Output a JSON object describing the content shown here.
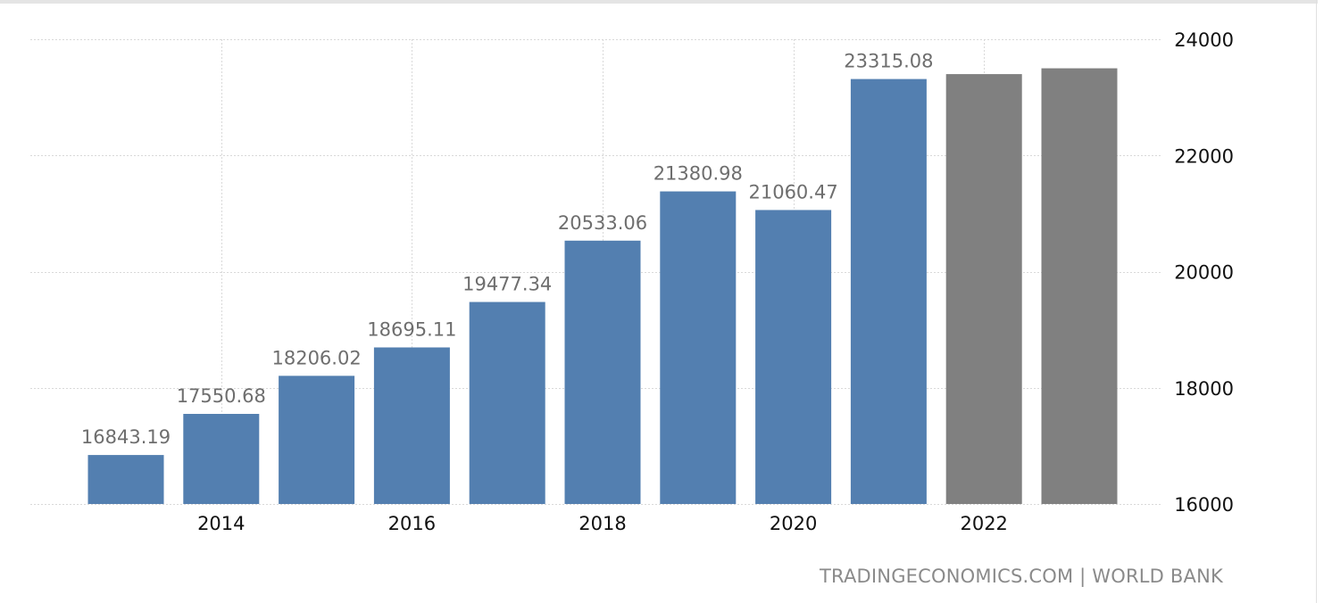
{
  "chart_data": {
    "type": "bar",
    "categories": [
      "2013",
      "2014",
      "2015",
      "2016",
      "2017",
      "2018",
      "2019",
      "2020",
      "2021",
      "2022",
      "2023"
    ],
    "values": [
      16843.19,
      17550.68,
      18206.02,
      18695.11,
      19477.34,
      20533.06,
      21380.98,
      21060.47,
      23315.08,
      23400,
      23500
    ],
    "data_labels": [
      "16843.19",
      "17550.68",
      "18206.02",
      "18695.11",
      "19477.34",
      "20533.06",
      "21380.98",
      "21060.47",
      "23315.08",
      "",
      ""
    ],
    "bar_kinds": [
      "actual",
      "actual",
      "actual",
      "actual",
      "actual",
      "actual",
      "actual",
      "actual",
      "actual",
      "forecast",
      "forecast"
    ],
    "x_tick_labels": [
      {
        "category": "2014",
        "label": "2014"
      },
      {
        "category": "2016",
        "label": "2016"
      },
      {
        "category": "2018",
        "label": "2018"
      },
      {
        "category": "2020",
        "label": "2020"
      },
      {
        "category": "2022",
        "label": "2022"
      }
    ],
    "y_ticks": [
      16000,
      18000,
      20000,
      22000,
      24000
    ],
    "ylim": [
      16000,
      24000
    ],
    "y_axis_side": "right",
    "title": "",
    "xlabel": "",
    "ylabel": "",
    "grid": true,
    "colors": {
      "actual": "#537fb0",
      "forecast": "#808080",
      "data_label": "#6e6e6e",
      "tick_label": "#111111",
      "grid": "#d9d9d9"
    }
  },
  "source": "TRADINGECONOMICS.COM  |  WORLD BANK"
}
